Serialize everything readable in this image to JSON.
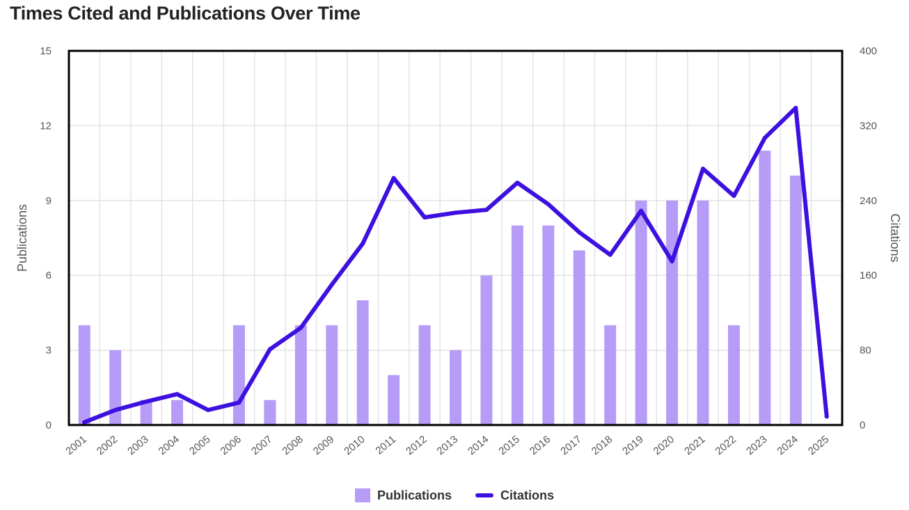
{
  "title": "Times Cited and Publications Over Time",
  "colors": {
    "bar": "#b69cf7",
    "line": "#3d10e0",
    "grid": "#e3e3e3",
    "frame": "#000000"
  },
  "chart_data": {
    "type": "bar+line",
    "title": "Times Cited and Publications Over Time",
    "categories": [
      "2001",
      "2002",
      "2003",
      "2004",
      "2005",
      "2006",
      "2007",
      "2008",
      "2009",
      "2010",
      "2011",
      "2012",
      "2013",
      "2014",
      "2015",
      "2016",
      "2017",
      "2018",
      "2019",
      "2020",
      "2021",
      "2022",
      "2023",
      "2024",
      "2025"
    ],
    "series": [
      {
        "name": "Publications",
        "type": "bar",
        "axis": "left",
        "values": [
          4,
          3,
          1,
          1,
          0,
          4,
          1,
          4,
          4,
          5,
          2,
          4,
          3,
          6,
          8,
          8,
          7,
          4,
          9,
          9,
          9,
          4,
          11,
          10,
          0
        ]
      },
      {
        "name": "Citations",
        "type": "line",
        "axis": "right",
        "values": [
          3,
          16,
          25,
          33,
          16,
          24,
          81,
          104,
          150,
          194,
          264,
          222,
          227,
          230,
          259,
          236,
          206,
          182,
          229,
          175,
          274,
          245,
          307,
          339,
          9
        ]
      }
    ],
    "y_left": {
      "label": "Publications",
      "lim": [
        0,
        15
      ],
      "ticks": [
        "0",
        "3",
        "6",
        "9",
        "12",
        "15"
      ]
    },
    "y_right": {
      "label": "Citations",
      "lim": [
        0,
        400
      ],
      "ticks": [
        "0",
        "80",
        "160",
        "240",
        "320",
        "400"
      ]
    },
    "grid": true,
    "legend": {
      "position": "bottom-center",
      "items": [
        "Publications",
        "Citations"
      ]
    }
  }
}
